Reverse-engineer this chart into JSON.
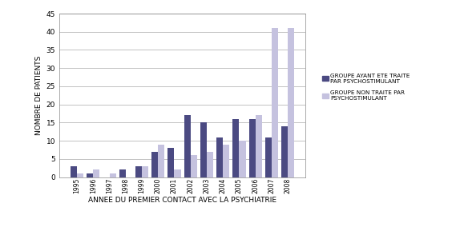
{
  "years": [
    "1995",
    "1996",
    "1997",
    "1998",
    "1999",
    "2000",
    "2001",
    "2002",
    "2003",
    "2004",
    "2005",
    "2006",
    "2007",
    "2008"
  ],
  "group1_values": [
    3,
    1,
    0,
    2,
    3,
    7,
    8,
    17,
    15,
    11,
    16,
    16,
    11,
    14
  ],
  "group2_values": [
    1,
    2,
    1,
    0,
    3,
    9,
    2,
    6,
    7,
    9,
    10,
    17,
    41,
    41
  ],
  "group1_color": "#4B4A82",
  "group2_color": "#C5C2DF",
  "group1_label": "GROUPE AYANT ETE TRAITE\nPAR PSYCHOSTIMULANT",
  "group2_label": "GROUPE NON TRAITE PAR\nPSYCHOSTIMULANT",
  "xlabel": "ANNEE DU PREMIER CONTACT AVEC LA PSYCHIATRIE",
  "ylabel": "NOMBRE DE PATIENTS",
  "ylim": [
    0,
    45
  ],
  "yticks": [
    0,
    5,
    10,
    15,
    20,
    25,
    30,
    35,
    40,
    45
  ],
  "background_color": "#ffffff",
  "bar_width": 0.4,
  "figsize": [
    5.69,
    2.84
  ],
  "dpi": 100
}
